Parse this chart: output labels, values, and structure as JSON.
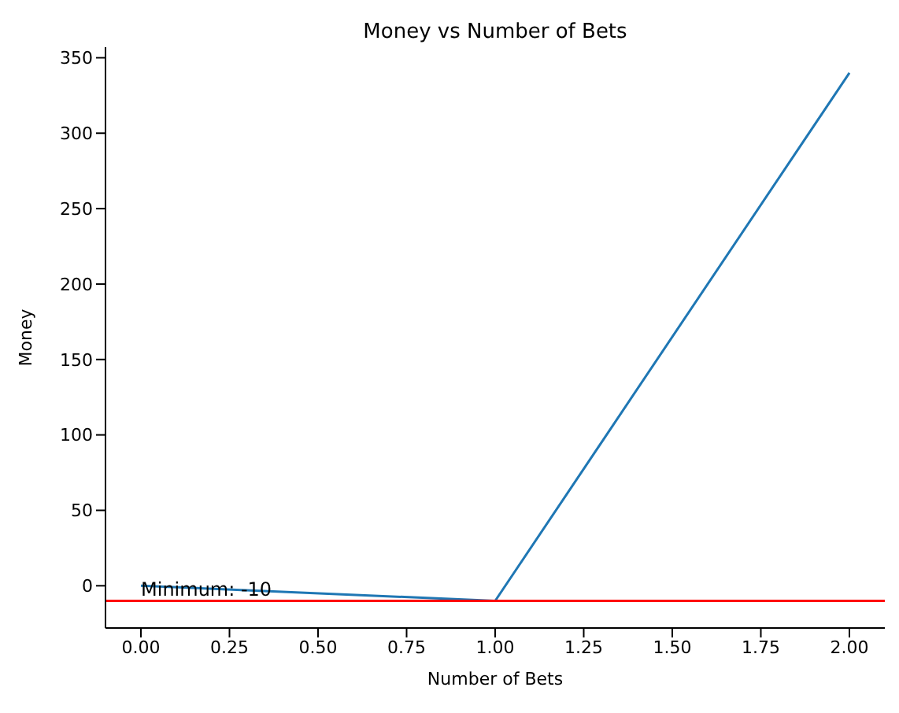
{
  "chart_data": {
    "type": "line",
    "title": "Money vs Number of Bets",
    "xlabel": "Number of Bets",
    "ylabel": "Money",
    "x": [
      0,
      1,
      2
    ],
    "series": [
      {
        "color": "#1f77b4",
        "values": [
          0,
          -10,
          340
        ]
      }
    ],
    "xlim": [
      -0.1,
      2.1
    ],
    "ylim": [
      -28,
      357
    ],
    "xticks": [
      {
        "value": 0,
        "label": "0.00"
      },
      {
        "value": 0.25,
        "label": "0.25"
      },
      {
        "value": 0.5,
        "label": "0.50"
      },
      {
        "value": 0.75,
        "label": "0.75"
      },
      {
        "value": 1,
        "label": "1.00"
      },
      {
        "value": 1.25,
        "label": "1.25"
      },
      {
        "value": 1.5,
        "label": "1.50"
      },
      {
        "value": 1.75,
        "label": "1.75"
      },
      {
        "value": 2,
        "label": "2.00"
      }
    ],
    "yticks": [
      0,
      50,
      100,
      150,
      200,
      250,
      300,
      350
    ],
    "ref_lines": [
      {
        "axis": "y",
        "value": -10,
        "label": "Minimum: -10",
        "color": "#ff0000"
      }
    ],
    "grid": false,
    "legend": false,
    "marker": "none",
    "line_style": "solid"
  }
}
